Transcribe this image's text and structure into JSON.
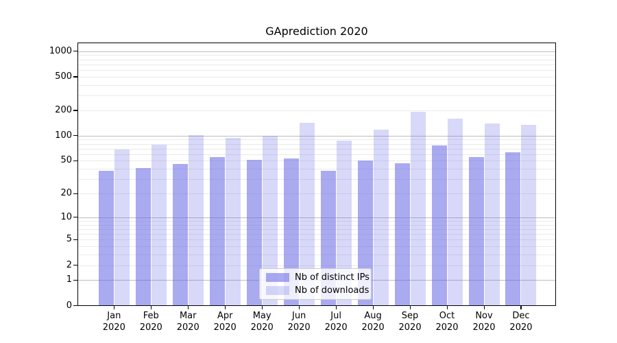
{
  "chart_data": {
    "type": "bar",
    "title": "GAprediction 2020",
    "categories": [
      "Jan 2020",
      "Feb 2020",
      "Mar 2020",
      "Apr 2020",
      "May 2020",
      "Jun 2020",
      "Jul 2020",
      "Aug 2020",
      "Sep 2020",
      "Oct 2020",
      "Nov 2020",
      "Dec 2020"
    ],
    "series": [
      {
        "name": "Nb of distinct IPs",
        "color": "#6464e6",
        "alpha": 0.55,
        "values": [
          38,
          41,
          46,
          56,
          51,
          53,
          38,
          50,
          47,
          76,
          56,
          63
        ]
      },
      {
        "name": "Nb of downloads",
        "color": "#6464e6",
        "alpha": 0.25,
        "values": [
          68,
          78,
          101,
          95,
          100,
          143,
          88,
          117,
          191,
          158,
          140,
          135
        ]
      }
    ],
    "xlabel": "",
    "ylabel": "",
    "yscale": "log1p",
    "y_tick_values": [
      0,
      1,
      2,
      5,
      10,
      20,
      50,
      100,
      200,
      500,
      1000
    ],
    "y_tick_labels": [
      "0",
      "1",
      "2",
      "5",
      "10",
      "20",
      "50",
      "100",
      "200",
      "500",
      "1000"
    ],
    "ylim": [
      0,
      1250
    ],
    "grid": {
      "major": true,
      "minor": true,
      "major_color": "#bcbcbc",
      "minor_color": "#eaeaea"
    },
    "legend": {
      "position": "lower-center-inside",
      "items": [
        "Nb of distinct IPs",
        "Nb of downloads"
      ]
    },
    "axis_color": "#000000",
    "text_color": "#000000",
    "background_color": "#ffffff"
  }
}
